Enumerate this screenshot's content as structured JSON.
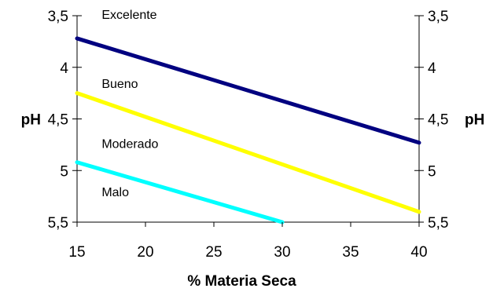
{
  "chart_data": {
    "type": "line",
    "xlabel": "% Materia Seca",
    "ylabel_left": "pH",
    "ylabel_right": "pH",
    "xlim": [
      15,
      40
    ],
    "ylim": [
      3.5,
      5.5
    ],
    "y_inverted": true,
    "grid": false,
    "x_ticks": [
      "15",
      "20",
      "25",
      "30",
      "35",
      "40"
    ],
    "y_ticks": [
      "3,5",
      "4",
      "4,5",
      "5",
      "5,5"
    ],
    "series": [
      {
        "x": [
          15,
          40
        ],
        "y": [
          3.72,
          4.73
        ],
        "color": "#000080"
      },
      {
        "x": [
          15,
          40
        ],
        "y": [
          4.25,
          5.4
        ],
        "color": "#ffff00"
      },
      {
        "x": [
          15,
          30
        ],
        "y": [
          4.92,
          5.5
        ],
        "color": "#00ffff"
      }
    ],
    "annotations": [
      {
        "text": "Excelente",
        "x": 16.8,
        "y": 3.53
      },
      {
        "text": "Bueno",
        "x": 16.8,
        "y": 4.2
      },
      {
        "text": "Moderado",
        "x": 16.8,
        "y": 4.78
      },
      {
        "text": "Malo",
        "x": 16.8,
        "y": 5.25
      }
    ]
  }
}
